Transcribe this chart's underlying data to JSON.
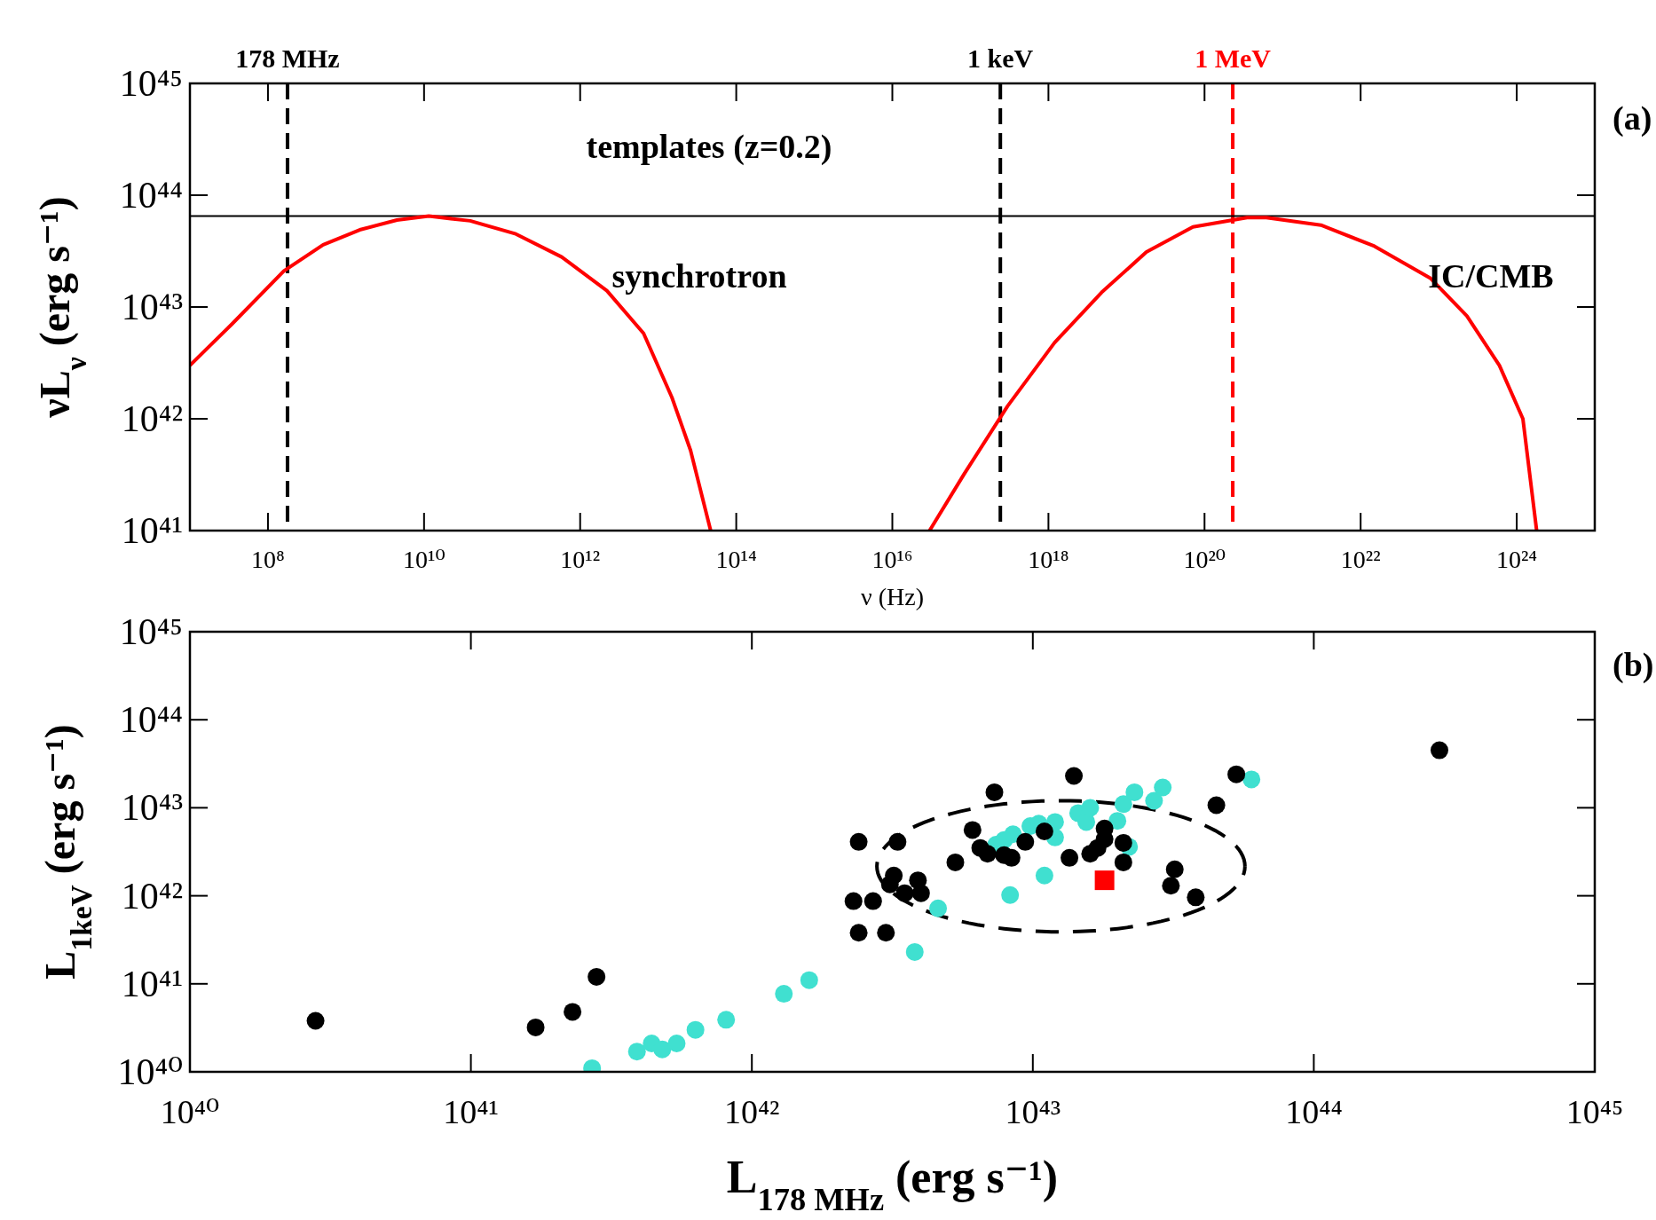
{
  "chart_data": [
    {
      "type": "line",
      "xlabel": "ν  (Hz)",
      "ylabel": "νL$_{ν}$ (erg s⁻¹)",
      "log": "xy",
      "grid": false,
      "line_style": "solid",
      "marker": "none",
      "xlim": [
        10000000.0,
        1e+25
      ],
      "ylim": [
        1e+41,
        1e+45
      ],
      "xticks": [
        {
          "value": 100000000.0,
          "label": "10⁸"
        },
        {
          "value": 10000000000.0,
          "label": "10¹⁰"
        },
        {
          "value": 1000000000000.0,
          "label": "10¹²"
        },
        {
          "value": 100000000000000.0,
          "label": "10¹⁴"
        },
        {
          "value": 1e+16,
          "label": "10¹⁶"
        },
        {
          "value": 1e+18,
          "label": "10¹⁸"
        },
        {
          "value": 1e+20,
          "label": "10²⁰"
        },
        {
          "value": 1e+22,
          "label": "10²²"
        },
        {
          "value": 1e+24,
          "label": "10²⁴"
        }
      ],
      "yticks": [
        {
          "value": 1e+41,
          "label": "10⁴¹"
        },
        {
          "value": 1e+42,
          "label": "10⁴²"
        },
        {
          "value": 1e+43,
          "label": "10⁴³"
        },
        {
          "value": 1e+44,
          "label": "10⁴⁴"
        },
        {
          "value": 1e+45,
          "label": "10⁴⁵"
        }
      ],
      "series": [
        {
          "color": "#ff0000",
          "x": [
            10000000.0,
            35000000.0,
            160000000.0,
            510000000.0,
            1500000000.0,
            4500000000.0,
            11500000000.0,
            39000000000.0,
            150000000000.0,
            580000000000.0,
            2200000000000.0,
            6500000000000.0,
            15000000000000.0,
            26000000000000.0,
            47000000000000.0
          ],
          "values": [
            3e+42,
            7.1e+42,
            2.1e+43,
            3.6e+43,
            4.9e+43,
            6e+43,
            6.5e+43,
            5.9e+43,
            4.5e+43,
            2.8e+43,
            1.4e+43,
            5.8e+42,
            1.55e+42,
            5.2e+41,
            1e+41
          ]
        },
        {
          "color": "#ff0000",
          "x": [
            3e+16,
            8.3e+16,
            3e+17,
            1.2e+18,
            4.8e+18,
            1.8e+19,
            7.1e+19,
            3.5e+20,
            6.2e+20,
            3.1e+21,
            1.5e+22,
            7.9e+22,
            2.3e+23,
            6e+23,
            1.2e+24,
            1.8e+24
          ],
          "values": [
            1e+41,
            3.2e+41,
            1.3e+42,
            4.8e+42,
            1.35e+43,
            3.1e+43,
            5.2e+43,
            6.3e+43,
            6.3e+43,
            5.4e+43,
            3.5e+43,
            1.8e+43,
            8.3e+42,
            3e+42,
            1e+42,
            1e+41
          ]
        }
      ],
      "ref_lines": [
        {
          "axis": "x",
          "value": 178000000.0,
          "label": "178 MHz",
          "color": "#000000",
          "line_style": "dashed"
        },
        {
          "axis": "x",
          "value": 2.42e+17,
          "label": "1 keV",
          "color": "#000000",
          "line_style": "dashed"
        },
        {
          "axis": "x",
          "value": 2.3e+20,
          "label": "1 MeV",
          "color": "#ff0000",
          "line_style": "dashed"
        },
        {
          "axis": "y",
          "value": 6.5e+43,
          "color": "#000000",
          "line_style": "solid"
        }
      ],
      "annotations": [
        "templates (z=0.2)",
        "synchrotron",
        "IC/CMB",
        "(a)"
      ]
    },
    {
      "type": "scatter",
      "xlabel": "L$_{178 MHz}$ (erg s⁻¹)",
      "ylabel": "L$_{1keV}$ (erg s⁻¹)",
      "log": "xy",
      "grid": false,
      "marker": "circle",
      "xlim": [
        1e+40,
        1e+45
      ],
      "ylim": [
        1e+40,
        1e+45
      ],
      "xticks": [
        {
          "value": 1e+40,
          "label": "10⁴⁰"
        },
        {
          "value": 1e+41,
          "label": "10⁴¹"
        },
        {
          "value": 1e+42,
          "label": "10⁴²"
        },
        {
          "value": 1e+43,
          "label": "10⁴³"
        },
        {
          "value": 1e+44,
          "label": "10⁴⁴"
        },
        {
          "value": 1e+45,
          "label": "10⁴⁵"
        }
      ],
      "yticks": [
        {
          "value": 1e+40,
          "label": "10⁴⁰"
        },
        {
          "value": 1e+41,
          "label": "10⁴¹"
        },
        {
          "value": 1e+42,
          "label": "10⁴²"
        },
        {
          "value": 1e+43,
          "label": "10⁴³"
        },
        {
          "value": 1e+44,
          "label": "10⁴⁴"
        },
        {
          "value": 1e+45,
          "label": "10⁴⁵"
        }
      ],
      "series": [
        {
          "color": "#000000",
          "x": [
            2.8e+40,
            1.7e+41,
            2.3e+41,
            2.8e+41,
            2.3e+42,
            2.4e+42,
            2.4e+42,
            2.7e+42,
            3e+42,
            3.3e+42,
            3.1e+42,
            3.2e+42,
            3.5e+42,
            3.9e+42,
            4e+42,
            5.3e+42,
            6.1e+42,
            6.5e+42,
            6.9e+42,
            7.3e+42,
            7.9e+42,
            8.4e+42,
            9.4e+42,
            1.1e+43,
            1.35e+43,
            1.4e+43,
            1.6e+43,
            1.7e+43,
            1.8e+43,
            1.8e+43,
            2.1e+43,
            2.1e+43,
            3.1e+43,
            3.2e+43,
            3.8e+43,
            4.5e+43,
            5.3e+43,
            2.8e+44
          ],
          "values": [
            3.8e+40,
            3.2e+40,
            4.8e+40,
            1.2e+41,
            8.7e+41,
            4.1e+42,
            3.8e+41,
            8.7e+41,
            3.8e+41,
            4.1e+42,
            1.35e+42,
            1.7e+42,
            1.07e+42,
            1.5e+42,
            1.07e+42,
            2.4e+42,
            5.6e+42,
            3.5e+42,
            3e+42,
            1.5e+43,
            2.9e+42,
            2.7e+42,
            4.1e+42,
            5.4e+42,
            2.7e+42,
            2.3e+43,
            3e+42,
            3.5e+42,
            5.8e+42,
            4.4e+42,
            4e+42,
            2.4e+42,
            1.3e+42,
            2e+42,
            9.6e+41,
            1.07e+43,
            2.4e+43,
            4.5e+43
          ]
        },
        {
          "color": "#40e0d0",
          "x": [
            2.7e+41,
            3.9e+41,
            4.4e+41,
            4.8e+41,
            5.4e+41,
            6.3e+41,
            8.1e+41,
            1.3e+42,
            1.6e+42,
            3.8e+42,
            4.6e+42,
            7.4e+42,
            7.9e+42,
            8.5e+42,
            8.3e+42,
            9.8e+42,
            1.05e+43,
            1.2e+43,
            1.2e+43,
            1.1e+43,
            1.45e+43,
            1.55e+43,
            1.6e+43,
            2e+43,
            2.2e+43,
            2.1e+43,
            2.3e+43,
            2.7e+43,
            2.9e+43,
            6e+43
          ],
          "values": [
            1.1e+40,
            1.7e+40,
            2.1e+40,
            1.8e+40,
            2.1e+40,
            3e+40,
            3.9e+40,
            7.7e+40,
            1.1e+41,
            2.3e+41,
            7.2e+41,
            3.8e+42,
            4.3e+42,
            5e+42,
            1.02e+42,
            6.2e+42,
            6.6e+42,
            6.9e+42,
            4.6e+42,
            1.7e+42,
            8.7e+42,
            6.9e+42,
            1e+43,
            7.1e+42,
            3.6e+42,
            1.1e+43,
            1.5e+43,
            1.2e+43,
            1.7e+43,
            2.1e+43
          ]
        },
        {
          "color": "#ff0000",
          "marker": "square",
          "x": [
            1.8e+43
          ],
          "values": [
            1.5e+42
          ]
        }
      ],
      "annotations": [
        "(b)"
      ]
    }
  ]
}
